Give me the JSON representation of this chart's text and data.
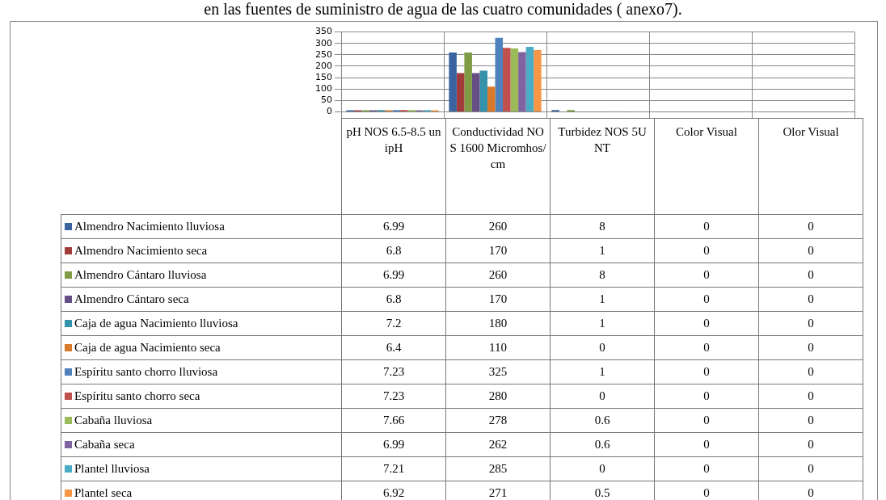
{
  "chart_data": {
    "type": "bar",
    "title": "en las fuentes de  suministro de agua de las cuatro  comunidades ( anexo7).",
    "categories": [
      "pH NOS 6.5-8.5 unipH",
      "Conductividad NOS 1600 Micromhos/cm",
      "Turbidez NOS 5UNT",
      "Color Visual",
      "Olor Visual"
    ],
    "ylim": [
      0,
      350
    ],
    "yticks": [
      0,
      50,
      100,
      150,
      200,
      250,
      300,
      350
    ],
    "grid": true,
    "legend": "bottom left",
    "data_labels": true,
    "series": [
      {
        "name": "Almendro Nacimiento lluviosa",
        "color": "#3a64a0",
        "values": [
          6.99,
          260,
          8,
          0,
          0
        ]
      },
      {
        "name": "Almendro Nacimiento seca",
        "color": "#a03c3a",
        "values": [
          6.8,
          170,
          1,
          0,
          0
        ]
      },
      {
        "name": "Almendro Cántaro lluviosa",
        "color": "#7f9b45",
        "values": [
          6.99,
          260,
          8,
          0,
          0
        ]
      },
      {
        "name": "Almendro Cántaro seca",
        "color": "#664f85",
        "values": [
          6.8,
          170,
          1,
          0,
          0
        ]
      },
      {
        "name": "Caja de agua Nacimiento lluviosa",
        "color": "#3592ab",
        "values": [
          7.2,
          180,
          1,
          0,
          0
        ]
      },
      {
        "name": "Caja de agua Nacimiento seca",
        "color": "#d97a2b",
        "values": [
          6.4,
          110,
          0,
          0,
          0
        ]
      },
      {
        "name": "Espíritu santo chorro lluviosa",
        "color": "#4f81bd",
        "values": [
          7.23,
          325,
          1,
          0,
          0
        ]
      },
      {
        "name": "Espíritu santo chorro seca",
        "color": "#c0504d",
        "values": [
          7.23,
          280,
          0,
          0,
          0
        ]
      },
      {
        "name": "Cabaña lluviosa",
        "color": "#9bbb59",
        "values": [
          7.66,
          278,
          0.6,
          0,
          0
        ]
      },
      {
        "name": "Cabaña seca",
        "color": "#8064a2",
        "values": [
          6.99,
          262,
          0.6,
          0,
          0
        ]
      },
      {
        "name": "Plantel lluviosa",
        "color": "#4bacc6",
        "values": [
          7.21,
          285,
          0,
          0,
          0
        ]
      },
      {
        "name": "Plantel seca",
        "color": "#f79646",
        "values": [
          6.92,
          271,
          0.5,
          0,
          0
        ]
      }
    ]
  }
}
